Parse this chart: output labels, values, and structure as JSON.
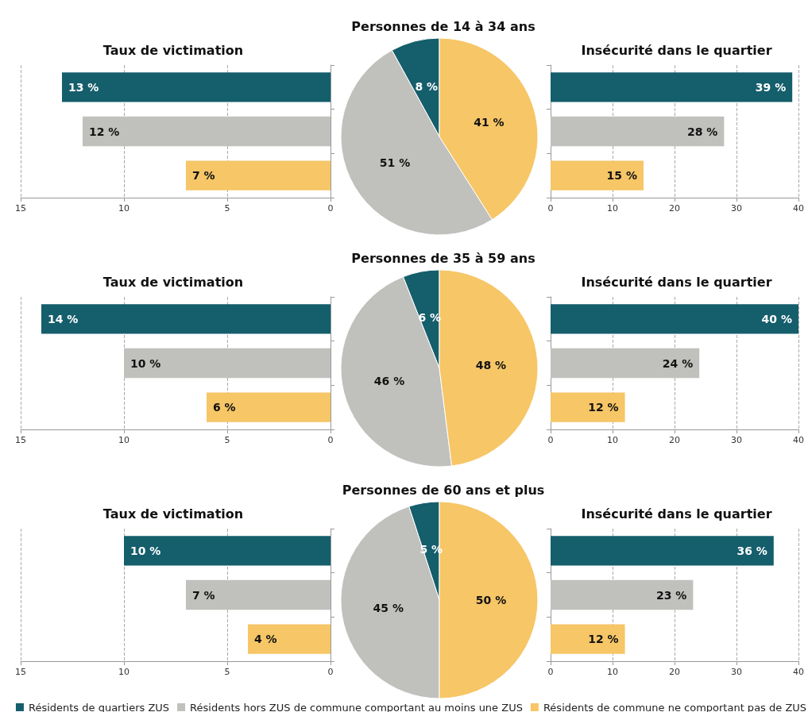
{
  "chart_data": [
    {
      "type": "bar",
      "orientation": "horizontal",
      "title": "Taux de victimation",
      "categories": [
        null,
        null,
        null
      ],
      "values": [
        13,
        12,
        7
      ],
      "colors": [
        "#155e6c",
        "#c0c0bd",
        "#f6c667"
      ],
      "value_labels": [
        "13 %",
        "12 %",
        "7 %"
      ],
      "xlim": [
        15,
        0
      ],
      "xticks": [
        15,
        10,
        5,
        0
      ],
      "grid": "x",
      "tick_labels": "x"
    },
    {
      "type": "pie",
      "title": "Personnes de 14 à 34 ans",
      "categories": [
        null,
        null,
        null
      ],
      "values": [
        8,
        51,
        41
      ],
      "colors": [
        "#155e6c",
        "#c0c0bd",
        "#f6c667"
      ],
      "value_labels": [
        "8 %",
        "51 %",
        "41 %"
      ]
    },
    {
      "type": "bar",
      "orientation": "horizontal",
      "title": "Insécurité dans le quartier",
      "categories": [
        null,
        null,
        null
      ],
      "values": [
        39,
        28,
        15
      ],
      "colors": [
        "#155e6c",
        "#c0c0bd",
        "#f6c667"
      ],
      "value_labels": [
        "39 %",
        "28 %",
        "15 %"
      ],
      "xlim": [
        0,
        40
      ],
      "xticks": [
        0,
        10,
        20,
        30,
        40
      ],
      "grid": "x",
      "tick_labels": "x"
    },
    {
      "type": "bar",
      "orientation": "horizontal",
      "title": "Taux de victimation",
      "categories": [
        null,
        null,
        null
      ],
      "values": [
        14,
        10,
        6
      ],
      "colors": [
        "#155e6c",
        "#c0c0bd",
        "#f6c667"
      ],
      "value_labels": [
        "14 %",
        "10 %",
        "6 %"
      ],
      "xlim": [
        15,
        0
      ],
      "xticks": [
        15,
        10,
        5,
        0
      ],
      "grid": "x",
      "tick_labels": "x"
    },
    {
      "type": "pie",
      "title": "Personnes de 35 à 59 ans",
      "categories": [
        null,
        null,
        null
      ],
      "values": [
        6,
        46,
        48
      ],
      "colors": [
        "#155e6c",
        "#c0c0bd",
        "#f6c667"
      ],
      "value_labels": [
        "6 %",
        "46 %",
        "48 %"
      ]
    },
    {
      "type": "bar",
      "orientation": "horizontal",
      "title": "Insécurité dans le quartier",
      "categories": [
        null,
        null,
        null
      ],
      "values": [
        40,
        24,
        12
      ],
      "colors": [
        "#155e6c",
        "#c0c0bd",
        "#f6c667"
      ],
      "value_labels": [
        "40 %",
        "24 %",
        "12 %"
      ],
      "xlim": [
        0,
        40
      ],
      "xticks": [
        0,
        10,
        20,
        30,
        40
      ],
      "grid": "x",
      "tick_labels": "x"
    },
    {
      "type": "bar",
      "orientation": "horizontal",
      "title": "Taux de victimation",
      "categories": [
        null,
        null,
        null
      ],
      "values": [
        10,
        7,
        4
      ],
      "colors": [
        "#155e6c",
        "#c0c0bd",
        "#f6c667"
      ],
      "value_labels": [
        "10 %",
        "7 %",
        "4 %"
      ],
      "xlim": [
        15,
        0
      ],
      "xticks": [
        15,
        10,
        5,
        0
      ],
      "grid": "x",
      "tick_labels": "x"
    },
    {
      "type": "pie",
      "title": "Personnes de 60 ans et plus",
      "categories": [
        "Résidents de quartiers ZUS",
        "Résidents hors ZUS de commune comportant au moins une ZUS",
        "Résidents de commune ne comportant pas de ZUS"
      ],
      "values": [
        5,
        45,
        50
      ],
      "colors": [
        "#155e6c",
        "#c0c0bd",
        "#f6c667"
      ],
      "value_labels": [
        "5 %",
        "45 %",
        "50 %"
      ],
      "legend": "bottom"
    },
    {
      "type": "bar",
      "orientation": "horizontal",
      "title": "Insécurité dans le quartier",
      "categories": [
        null,
        null,
        null
      ],
      "values": [
        36,
        23,
        12
      ],
      "colors": [
        "#155e6c",
        "#c0c0bd",
        "#f6c667"
      ],
      "value_labels": [
        "36 %",
        "23 %",
        "12 %"
      ],
      "xlim": [
        0,
        40
      ],
      "xticks": [
        0,
        10,
        20,
        30,
        40
      ],
      "grid": "x",
      "tick_labels": "x"
    }
  ]
}
